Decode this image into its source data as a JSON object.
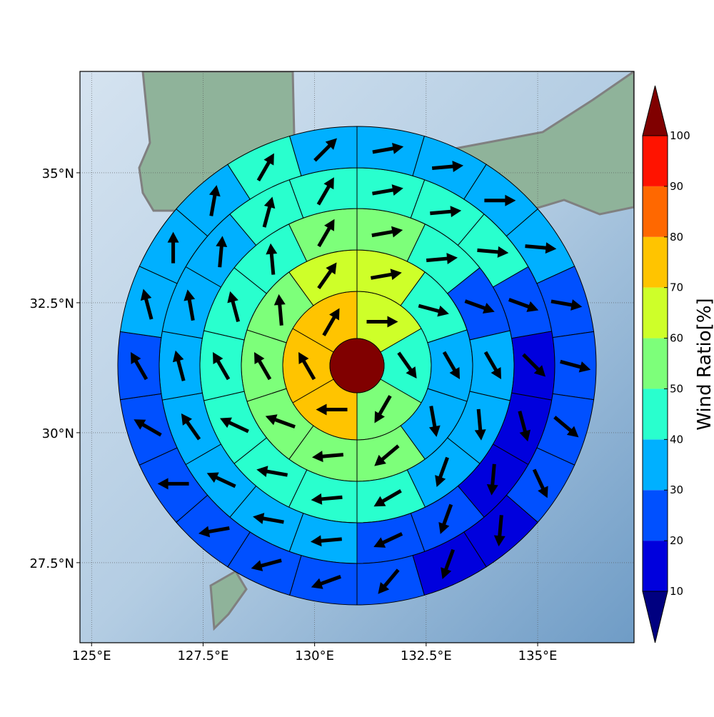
{
  "chart_data": {
    "type": "polar-grid",
    "xlim": [
      124.74,
      137.16
    ],
    "ylim": [
      25.96,
      36.95
    ],
    "xticks": [
      {
        "value": 125,
        "label": "125°E"
      },
      {
        "value": 127.5,
        "label": "127.5°E"
      },
      {
        "value": 130,
        "label": "130°E"
      },
      {
        "value": 132.5,
        "label": "132.5°E"
      },
      {
        "value": 135,
        "label": "135°E"
      }
    ],
    "yticks": [
      {
        "value": 27.5,
        "label": "27.5°N"
      },
      {
        "value": 30,
        "label": "30°N"
      },
      {
        "value": 32.5,
        "label": "32.5°N"
      },
      {
        "value": 35,
        "label": "35°N"
      }
    ],
    "grid": true,
    "center_value": 105,
    "rings": [
      {
        "values": [
          65,
          45,
          55,
          75,
          75,
          75
        ],
        "directions": [
          90,
          145,
          210,
          270,
          330,
          30
        ]
      },
      {
        "values": [
          65,
          45,
          35,
          35,
          55,
          55,
          55,
          55,
          55,
          65
        ],
        "directions": [
          80,
          105,
          150,
          170,
          230,
          265,
          290,
          330,
          355,
          35
        ]
      },
      {
        "values": [
          55,
          45,
          25,
          35,
          35,
          35,
          45,
          45,
          45,
          45,
          45,
          45,
          45,
          55
        ],
        "directions": [
          80,
          85,
          110,
          150,
          175,
          200,
          240,
          265,
          280,
          295,
          330,
          345,
          355,
          30
        ]
      },
      {
        "values": [
          45,
          45,
          45,
          25,
          15,
          15,
          15,
          25,
          25,
          35,
          35,
          35,
          35,
          35,
          35,
          35,
          45,
          45
        ],
        "directions": [
          80,
          85,
          95,
          110,
          135,
          165,
          185,
          200,
          245,
          265,
          280,
          295,
          325,
          345,
          350,
          5,
          15,
          30
        ]
      },
      {
        "values": [
          35,
          35,
          35,
          35,
          25,
          25,
          25,
          25,
          15,
          15,
          25,
          25,
          25,
          25,
          25,
          25,
          25,
          35,
          35,
          35,
          45,
          35
        ],
        "directions": [
          80,
          85,
          90,
          95,
          100,
          105,
          130,
          155,
          185,
          200,
          220,
          250,
          255,
          260,
          270,
          300,
          330,
          345,
          0,
          10,
          30,
          45
        ]
      }
    ],
    "colorbar": {
      "label": "Wind Ratio[%]",
      "ticks": [
        10,
        20,
        30,
        40,
        50,
        60,
        70,
        80,
        90,
        100
      ],
      "colors": [
        "#0000dd",
        "#0050ff",
        "#00b0ff",
        "#29ffce",
        "#7dff7a",
        "#ceff29",
        "#ffc400",
        "#ff6800",
        "#ff1300"
      ],
      "under_color": "#000080",
      "over_color": "#800000"
    }
  }
}
